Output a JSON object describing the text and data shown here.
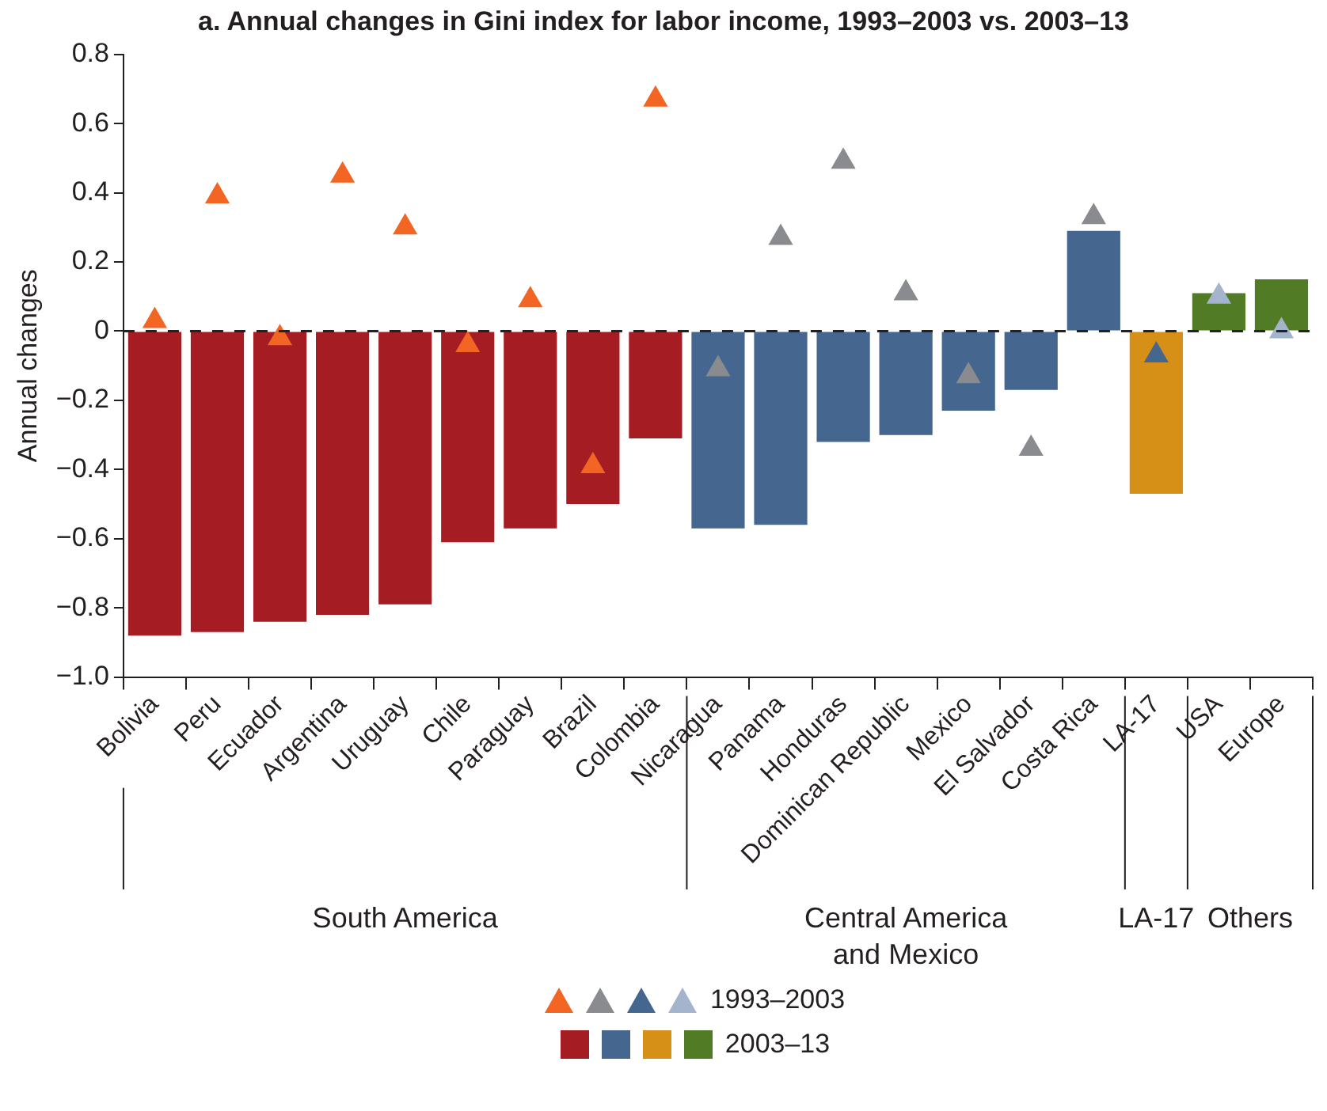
{
  "chart_data": {
    "type": "bar",
    "title": "a. Annual changes in Gini index for labor income, 1993–2003 vs. 2003–13",
    "ylabel": "Annual changes",
    "categories": [
      "Bolivia",
      "Peru",
      "Ecuador",
      "Argentina",
      "Uruguay",
      "Chile",
      "Paraguay",
      "Brazil",
      "Colombia",
      "Nicaragua",
      "Panama",
      "Honduras",
      "Dominican Republic",
      "Mexico",
      "El Salvador",
      "Costa Rica",
      "LA-17",
      "USA",
      "Europe"
    ],
    "series": [
      {
        "name": "2003–13",
        "values": [
          -0.88,
          -0.87,
          -0.84,
          -0.82,
          -0.79,
          -0.61,
          -0.57,
          -0.5,
          -0.31,
          -0.57,
          -0.56,
          -0.32,
          -0.3,
          -0.23,
          -0.17,
          0.29,
          -0.47,
          0.11,
          0.15
        ],
        "colors": [
          "#a51c22",
          "#a51c22",
          "#a51c22",
          "#a51c22",
          "#a51c22",
          "#a51c22",
          "#a51c22",
          "#a51c22",
          "#a51c22",
          "#44668f",
          "#44668f",
          "#44668f",
          "#44668f",
          "#44668f",
          "#44668f",
          "#44668f",
          "#d68f17",
          "#527b25",
          "#527b25"
        ]
      },
      {
        "name": "1993–2003",
        "type": "scatter",
        "values": [
          0.03,
          0.39,
          -0.02,
          0.45,
          0.3,
          -0.04,
          0.09,
          -0.39,
          0.67,
          -0.11,
          0.27,
          0.49,
          0.11,
          -0.13,
          -0.34,
          0.33,
          -0.07,
          0.1,
          0
        ],
        "colors": [
          "#f26522",
          "#f26522",
          "#f26522",
          "#f26522",
          "#f26522",
          "#f26522",
          "#f26522",
          "#f26522",
          "#f26522",
          "#8a8b8f",
          "#8a8b8f",
          "#8a8b8f",
          "#8a8b8f",
          "#8a8b8f",
          "#8a8b8f",
          "#8a8b8f",
          "#44668f",
          "#a4b4cc",
          "#a4b4cc"
        ]
      }
    ],
    "marker": "triangle",
    "ylim": [
      -1,
      0.8
    ],
    "yticks": [
      {
        "value": -1,
        "label": "−1.0"
      },
      {
        "value": -0.8,
        "label": "−0.8"
      },
      {
        "value": -0.6,
        "label": "−0.6"
      },
      {
        "value": -0.4,
        "label": "−0.4"
      },
      {
        "value": -0.2,
        "label": "−0.2"
      },
      0,
      0.2,
      0.4,
      0.6,
      0.8
    ],
    "ref_lines": [
      {
        "axis": "y",
        "value": 0,
        "label": null,
        "color": "#222222",
        "line_style": "dashed"
      }
    ],
    "annotations": [
      "South America",
      "Central America\nand Mexico",
      "LA-17",
      "Others"
    ],
    "grid": false,
    "legend": "bottom"
  }
}
